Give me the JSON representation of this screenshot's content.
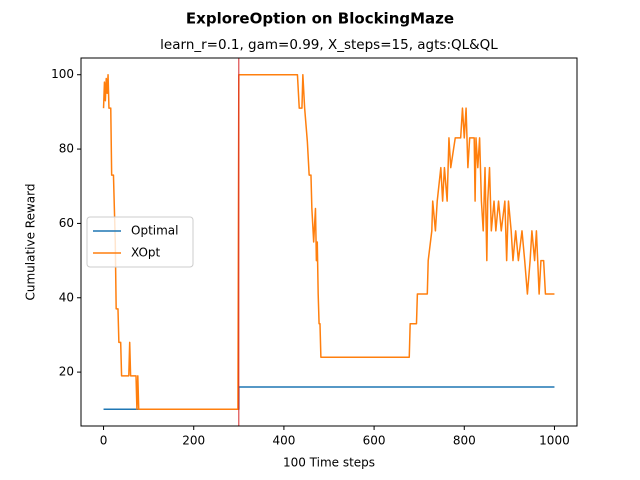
{
  "chart_data": {
    "type": "line",
    "title": "ExploreOption on BlockingMaze",
    "subtitle": "learn_r=0.1, gam=0.99, X_steps=15, agts:QL&QL",
    "x_label": "100 Time steps",
    "y_label": "Cumulative Reward",
    "xlim": [
      -50,
      1050
    ],
    "ylim": [
      5.5,
      104.5
    ],
    "xticks": [
      0,
      200,
      400,
      600,
      800,
      1000
    ],
    "yticks": [
      20,
      40,
      60,
      80,
      100
    ],
    "grid": false,
    "legend": "center left",
    "vline": {
      "x": 300,
      "color": "#d62728"
    },
    "series": [
      {
        "name": "Optimal",
        "color": "#1f77b4",
        "x": [
          0,
          300,
          300,
          1000
        ],
        "values": [
          10,
          10,
          16,
          16
        ]
      },
      {
        "name": "XOpt",
        "color": "#ff7f0e",
        "x": [
          0,
          2,
          4,
          6,
          8,
          10,
          12,
          16,
          18,
          22,
          24,
          26,
          28,
          32,
          34,
          38,
          40,
          56,
          58,
          60,
          72,
          74,
          76,
          78,
          298,
          300,
          430,
          434,
          440,
          442,
          446,
          452,
          456,
          460,
          462,
          466,
          470,
          472,
          474,
          476,
          478,
          480,
          482,
          678,
          680,
          694,
          696,
          718,
          720,
          728,
          730,
          736,
          740,
          748,
          752,
          756,
          762,
          766,
          770,
          780,
          792,
          796,
          800,
          804,
          808,
          812,
          822,
          824,
          826,
          830,
          834,
          838,
          842,
          846,
          850,
          852,
          856,
          860,
          866,
          870,
          876,
          882,
          890,
          894,
          898,
          904,
          908,
          914,
          920,
          928,
          934,
          940,
          946,
          950,
          956,
          960,
          966,
          970,
          976,
          980,
          1000
        ],
        "values": [
          91,
          98,
          93,
          99,
          95,
          100,
          91,
          91,
          73,
          73,
          64,
          55,
          37,
          37,
          28,
          28,
          19,
          19,
          28,
          19,
          19,
          10,
          19,
          10,
          10,
          100,
          100,
          91,
          91,
          100,
          91,
          82,
          73,
          73,
          64,
          55,
          64,
          50,
          55,
          41,
          33,
          33,
          24,
          24,
          33,
          33,
          41,
          41,
          50,
          58,
          66,
          58,
          66,
          75,
          66,
          75,
          66,
          83,
          75,
          83,
          83,
          91,
          83,
          91,
          75,
          83,
          83,
          66,
          83,
          75,
          83,
          66,
          58,
          75,
          50,
          66,
          75,
          58,
          66,
          58,
          66,
          58,
          66,
          50,
          66,
          58,
          50,
          58,
          50,
          58,
          50,
          41,
          50,
          58,
          50,
          58,
          41,
          50,
          50,
          41,
          41
        ]
      }
    ]
  }
}
